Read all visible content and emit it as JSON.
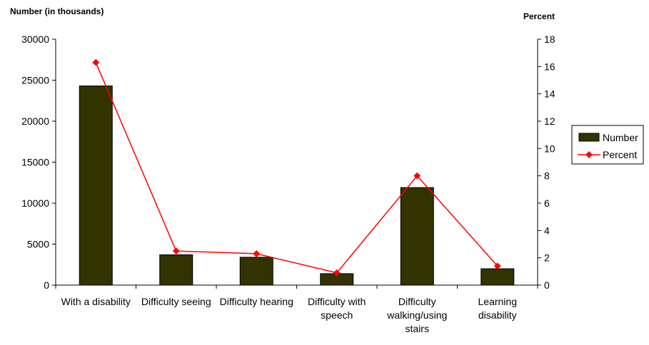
{
  "chart_data": {
    "type": "bar",
    "left_axis_title": "Number (in thousands)",
    "right_axis_title": "Percent",
    "categories": [
      [
        "With a disability"
      ],
      [
        "Difficulty seeing"
      ],
      [
        "Difficulty hearing"
      ],
      [
        "Difficulty with",
        "speech"
      ],
      [
        "Difficulty",
        "walking/using",
        "stairs"
      ],
      [
        "Learning",
        "disability"
      ]
    ],
    "series": [
      {
        "name": "Number",
        "type": "bar",
        "axis": "left",
        "color": "#333300",
        "values": [
          24300,
          3700,
          3400,
          1400,
          11900,
          2000
        ]
      },
      {
        "name": "Percent",
        "type": "line",
        "axis": "right",
        "color": "#ff0000",
        "values": [
          16.3,
          2.5,
          2.3,
          0.9,
          8.0,
          1.4
        ]
      }
    ],
    "left_ylim": [
      0,
      30000
    ],
    "left_ticks": [
      "0",
      "5000",
      "10000",
      "15000",
      "20000",
      "25000",
      "30000"
    ],
    "right_ylim": [
      0,
      18
    ],
    "right_ticks": [
      "0",
      "2",
      "4",
      "6",
      "8",
      "10",
      "12",
      "14",
      "16",
      "18"
    ],
    "legend_position": "right",
    "grid": false
  }
}
